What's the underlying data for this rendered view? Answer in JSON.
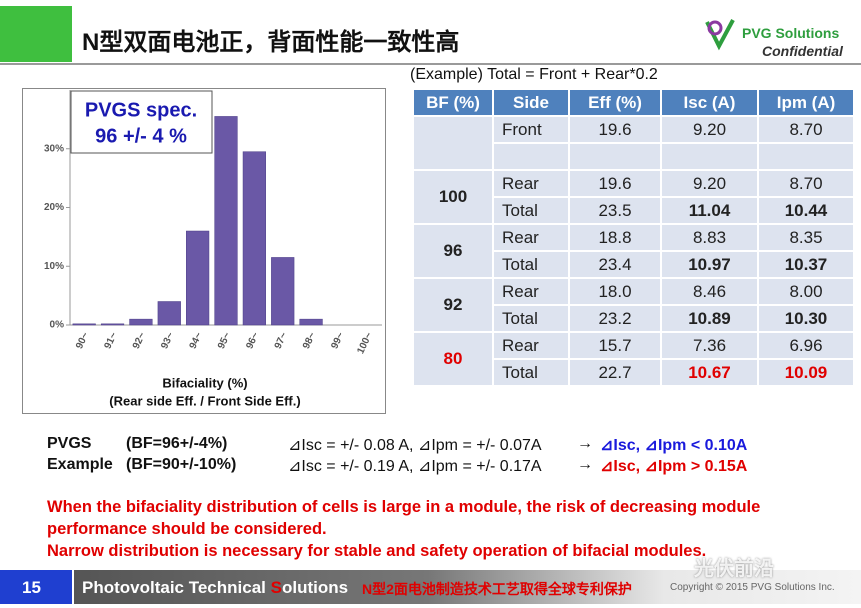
{
  "header": {
    "title": "N型双面电池正，背面性能一致性高",
    "logo_name": "PVG Solutions",
    "logo_sub": "Confidential"
  },
  "chart_data": {
    "type": "bar",
    "annotations": [
      "PVGS spec.",
      "96 +/- 4 %"
    ],
    "x_label": [
      "Bifaciality (%)",
      "(Rear side Eff. / Front Side Eff.)"
    ],
    "categories": [
      "90~",
      "91~",
      "92~",
      "93~",
      "94~",
      "95~",
      "96~",
      "97~",
      "98~",
      "99~",
      "100~"
    ],
    "values": [
      0.2,
      0.2,
      1,
      4,
      16,
      35.5,
      29.5,
      11.5,
      1,
      0,
      0
    ],
    "color": "#6a58a6",
    "ylim": [
      0,
      40
    ],
    "yticks": [
      {
        "value": 0,
        "label": "0%"
      },
      {
        "value": 10,
        "label": "10%"
      },
      {
        "value": 20,
        "label": "20%"
      },
      {
        "value": 30,
        "label": "30%"
      }
    ]
  },
  "formula": "(Example) Total = Front + Rear*0.2",
  "table": {
    "header": [
      "BF (%)",
      "Side",
      "Eff (%)",
      "Isc (A)",
      "Ipm (A)"
    ],
    "groups": [
      {
        "rows": [
          [
            "Front",
            "19.6",
            "9.20",
            "8.70"
          ],
          []
        ]
      },
      {
        "bf": "100",
        "rows": [
          [
            "Rear",
            "19.6",
            "9.20",
            "8.70"
          ],
          [
            "Total",
            "23.5",
            "11.04",
            "10.44"
          ]
        ]
      },
      {
        "bf": "96",
        "rows": [
          [
            "Rear",
            "18.8",
            "8.83",
            "8.35"
          ],
          [
            "Total",
            "23.4",
            "10.97",
            "10.37"
          ]
        ]
      },
      {
        "bf": "92",
        "rows": [
          [
            "Rear",
            "18.0",
            "8.46",
            "8.00"
          ],
          [
            "Total",
            "23.2",
            "10.89",
            "10.30"
          ]
        ]
      },
      {
        "bf": "80",
        "color": "#e00000",
        "rows": [
          [
            "Rear",
            "15.7",
            "7.36",
            "6.96"
          ],
          [
            "Total",
            "22.7",
            "10.67",
            "10.09"
          ]
        ]
      }
    ]
  },
  "notes": [
    {
      "label": "PVGS",
      "bf": "(BF=96+/-4%)",
      "delta": "⊿Isc = +/- 0.08 A, ⊿Ipm = +/- 0.07A",
      "arrow": "→",
      "result": "⊿Isc, ⊿Ipm < 0.10A",
      "color": "#1a1adc"
    },
    {
      "label": "Example",
      "bf": "(BF=90+/-10%)",
      "delta": "⊿Isc = +/- 0.19 A, ⊿Ipm = +/- 0.17A",
      "arrow": "→",
      "result": "⊿Isc, ⊿Ipm > 0.15A",
      "color": "#e00000"
    }
  ],
  "warning": [
    "When the bifaciality distribution of cells is large in a module, the risk of decreasing module",
    "performance should be considered.",
    "Narrow distribution is necessary for stable and safety operation of bifacial modules."
  ],
  "footer": {
    "page": "15",
    "brand": [
      "Photovoltaic Technical ",
      "S",
      "olutions"
    ],
    "tagline": "N型2面电池制造技术工艺取得全球专利保护",
    "copyright": "Copyright © 2015 PVG Solutions Inc.",
    "watermark": "光伏前沿"
  }
}
